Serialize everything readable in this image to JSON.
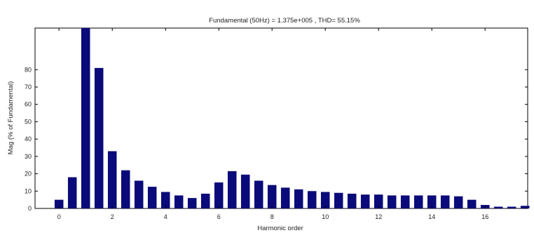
{
  "chart_data": {
    "type": "bar",
    "title": "Fundamental (50Hz) = 1.375e+005 , THD= 55.15%",
    "xlabel": "Harmonic order",
    "ylabel": "Mag (% of Fundamental)",
    "x_ticks": [
      "0",
      "2",
      "4",
      "6",
      "8",
      "10",
      "12",
      "14",
      "16"
    ],
    "y_ticks": [
      "0",
      "10",
      "20",
      "30",
      "40",
      "50",
      "60",
      "70",
      "80"
    ],
    "xlim": [
      -0.9,
      17.6
    ],
    "ylim": [
      0,
      104
    ],
    "bar_color": "#0a0a7a",
    "x": [
      0,
      0.5,
      1,
      1.5,
      2,
      2.5,
      3,
      3.5,
      4,
      4.5,
      5,
      5.5,
      6,
      6.5,
      7,
      7.5,
      8,
      8.5,
      9,
      9.5,
      10,
      10.5,
      11,
      11.5,
      12,
      12.5,
      13,
      13.5,
      14,
      14.5,
      15,
      15.5,
      16,
      16.5,
      17,
      17.5
    ],
    "values": [
      5,
      18,
      104,
      81,
      33,
      22,
      16,
      12.5,
      9.5,
      7.5,
      6,
      8.5,
      15,
      21.5,
      19.5,
      16,
      13.5,
      12,
      11,
      10,
      9.5,
      9,
      8.5,
      8,
      8,
      7.5,
      7.5,
      7.5,
      7.5,
      7.5,
      7,
      5,
      2,
      1,
      1,
      1.5
    ]
  }
}
